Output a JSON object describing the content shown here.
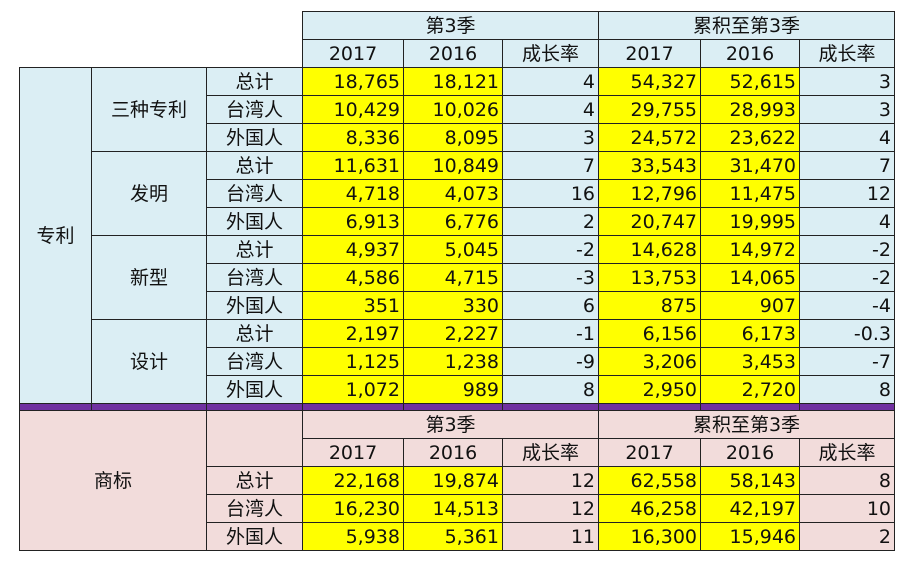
{
  "headers": {
    "q3": "第3季",
    "cumulative": "累积至第3季",
    "y2017": "2017",
    "y2016": "2016",
    "growth": "成长率"
  },
  "patent": {
    "label": "专利",
    "groups": [
      {
        "name": "三种专利",
        "rows": [
          {
            "label": "总计",
            "q2017": "18,765",
            "q2016": "18,121",
            "qg": "4",
            "c2017": "54,327",
            "c2016": "52,615",
            "cg": "3"
          },
          {
            "label": "台湾人",
            "q2017": "10,429",
            "q2016": "10,026",
            "qg": "4",
            "c2017": "29,755",
            "c2016": "28,993",
            "cg": "3"
          },
          {
            "label": "外国人",
            "q2017": "8,336",
            "q2016": "8,095",
            "qg": "3",
            "c2017": "24,572",
            "c2016": "23,622",
            "cg": "4"
          }
        ]
      },
      {
        "name": "发明",
        "rows": [
          {
            "label": "总计",
            "q2017": "11,631",
            "q2016": "10,849",
            "qg": "7",
            "c2017": "33,543",
            "c2016": "31,470",
            "cg": "7"
          },
          {
            "label": "台湾人",
            "q2017": "4,718",
            "q2016": "4,073",
            "qg": "16",
            "c2017": "12,796",
            "c2016": "11,475",
            "cg": "12"
          },
          {
            "label": "外国人",
            "q2017": "6,913",
            "q2016": "6,776",
            "qg": "2",
            "c2017": "20,747",
            "c2016": "19,995",
            "cg": "4"
          }
        ]
      },
      {
        "name": "新型",
        "rows": [
          {
            "label": "总计",
            "q2017": "4,937",
            "q2016": "5,045",
            "qg": "-2",
            "c2017": "14,628",
            "c2016": "14,972",
            "cg": "-2"
          },
          {
            "label": "台湾人",
            "q2017": "4,586",
            "q2016": "4,715",
            "qg": "-3",
            "c2017": "13,753",
            "c2016": "14,065",
            "cg": "-2"
          },
          {
            "label": "外国人",
            "q2017": "351",
            "q2016": "330",
            "qg": "6",
            "c2017": "875",
            "c2016": "907",
            "cg": "-4"
          }
        ]
      },
      {
        "name": "设计",
        "rows": [
          {
            "label": "总计",
            "q2017": "2,197",
            "q2016": "2,227",
            "qg": "-1",
            "c2017": "6,156",
            "c2016": "6,173",
            "cg": "-0.3"
          },
          {
            "label": "台湾人",
            "q2017": "1,125",
            "q2016": "1,238",
            "qg": "-9",
            "c2017": "3,206",
            "c2016": "3,453",
            "cg": "-7"
          },
          {
            "label": "外国人",
            "q2017": "1,072",
            "q2016": "989",
            "qg": "8",
            "c2017": "2,950",
            "c2016": "2,720",
            "cg": "8"
          }
        ]
      }
    ]
  },
  "trademark": {
    "label": "商标",
    "rows": [
      {
        "label": "总计",
        "q2017": "22,168",
        "q2016": "19,874",
        "qg": "12",
        "c2017": "62,558",
        "c2016": "58,143",
        "cg": "8"
      },
      {
        "label": "台湾人",
        "q2017": "16,230",
        "q2016": "14,513",
        "qg": "12",
        "c2017": "46,258",
        "c2016": "42,197",
        "cg": "10"
      },
      {
        "label": "外国人",
        "q2017": "5,938",
        "q2016": "5,361",
        "qg": "11",
        "c2017": "16,300",
        "c2016": "15,946",
        "cg": "2"
      }
    ]
  }
}
